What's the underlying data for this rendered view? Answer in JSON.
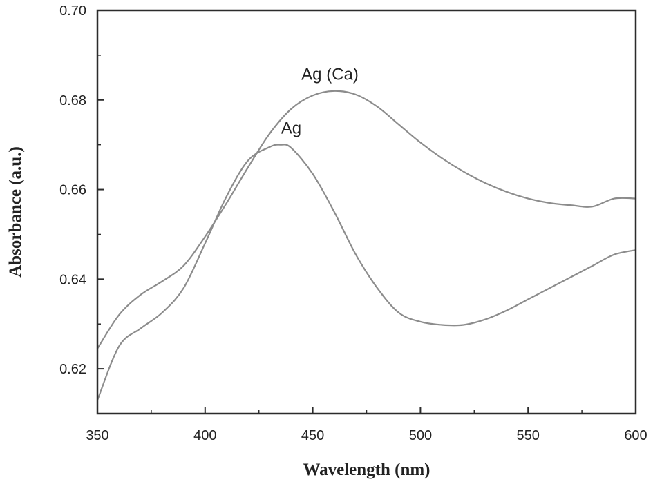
{
  "chart_data": {
    "type": "line",
    "xlabel": "Wavelength (nm)",
    "ylabel": "Absorbance (a.u.)",
    "xlim": [
      350,
      600
    ],
    "ylim": [
      0.61,
      0.7
    ],
    "x_ticks": [
      "350",
      "400",
      "450",
      "500",
      "550",
      "600"
    ],
    "y_ticks": [
      "0.62",
      "0.64",
      "0.66",
      "0.68",
      "0.70"
    ],
    "grid": false,
    "line_color": "#8c8c8c",
    "series": [
      {
        "name": "Ag (Ca)",
        "x": [
          350,
          360,
          370,
          380,
          390,
          400,
          410,
          420,
          430,
          440,
          450,
          460,
          470,
          480,
          490,
          500,
          510,
          520,
          530,
          540,
          550,
          560,
          570,
          580,
          590,
          600
        ],
        "y": [
          0.6245,
          0.632,
          0.6365,
          0.6395,
          0.643,
          0.6495,
          0.657,
          0.665,
          0.6725,
          0.678,
          0.681,
          0.682,
          0.6812,
          0.6785,
          0.6745,
          0.6705,
          0.667,
          0.664,
          0.6615,
          0.6595,
          0.658,
          0.657,
          0.6565,
          0.6562,
          0.658,
          0.658
        ]
      },
      {
        "name": "Ag",
        "x": [
          350,
          360,
          370,
          380,
          390,
          400,
          410,
          420,
          430,
          435,
          440,
          450,
          460,
          470,
          480,
          490,
          500,
          510,
          520,
          530,
          540,
          550,
          560,
          570,
          580,
          590,
          600
        ],
        "y": [
          0.613,
          0.625,
          0.629,
          0.6325,
          0.638,
          0.648,
          0.6585,
          0.6665,
          0.6695,
          0.67,
          0.6693,
          0.6635,
          0.655,
          0.6455,
          0.638,
          0.6325,
          0.6305,
          0.6298,
          0.6298,
          0.631,
          0.633,
          0.6355,
          0.638,
          0.6405,
          0.643,
          0.6455,
          0.6465
        ]
      }
    ],
    "annotations": [
      {
        "text": "Ag (Ca)",
        "x": 458,
        "y": 0.6845
      },
      {
        "text": "Ag",
        "x": 440,
        "y": 0.6725
      }
    ]
  }
}
